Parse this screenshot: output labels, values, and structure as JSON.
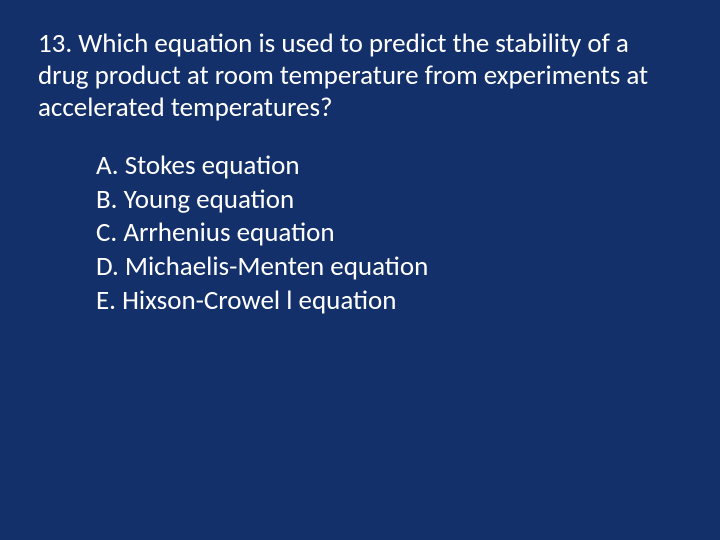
{
  "slide": {
    "background_color": "#13306a",
    "text_color": "#ffffff",
    "font_family": "Calibri",
    "question_fontsize": 27,
    "option_fontsize": 27,
    "question": "13. Which equation is used to predict the stability of a drug product at room temperature from experiments at accelerated temperatures?",
    "options": [
      "A. Stokes equation",
      "B. Young equation",
      "C. Arrhenius equation",
      "D. Michaelis-Menten equation",
      "E. Hixson-Crowel l equation"
    ]
  }
}
